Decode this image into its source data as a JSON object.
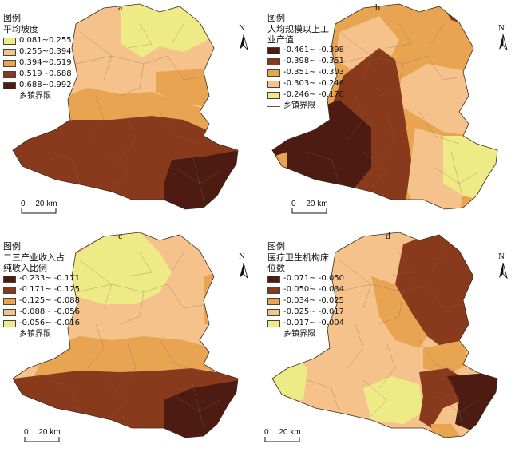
{
  "panels": [
    {
      "letter": "a",
      "legend_title": "平均坡度",
      "classes": [
        {
          "label": "0.081~0.255",
          "color": "#eeeb86"
        },
        {
          "label": "0.255~0.394",
          "color": "#f5c28b"
        },
        {
          "label": "0.394~0.519",
          "color": "#e8a451"
        },
        {
          "label": "0.519~0.688",
          "color": "#8a3a1c"
        },
        {
          "label": "0.688~0.992",
          "color": "#4e1b12"
        }
      ]
    },
    {
      "letter": "b",
      "legend_title": "人均规模以上工业产值",
      "classes": [
        {
          "label": "-0.461~ -0.398",
          "color": "#4e1b12"
        },
        {
          "label": "-0.398~ -0.351",
          "color": "#8a3a1c"
        },
        {
          "label": "-0.351~ -0.303",
          "color": "#e8a451"
        },
        {
          "label": "-0.303~ -0.246",
          "color": "#f5c28b"
        },
        {
          "label": "-0.246~ -0.170",
          "color": "#eeeb86"
        }
      ]
    },
    {
      "letter": "c",
      "legend_title": "二三产业收入占纯收入比例",
      "classes": [
        {
          "label": "-0.233~ -0.171",
          "color": "#4e1b12"
        },
        {
          "label": "-0.171~ -0.125",
          "color": "#8a3a1c"
        },
        {
          "label": "-0.125~ -0.088",
          "color": "#e8a451"
        },
        {
          "label": "-0.088~ -0.056",
          "color": "#f5c28b"
        },
        {
          "label": "-0.056~ -0.016",
          "color": "#eeeb86"
        }
      ]
    },
    {
      "letter": "d",
      "legend_title": "医疗卫生机构床位数",
      "classes": [
        {
          "label": "-0.071~ -0.050",
          "color": "#4e1b12"
        },
        {
          "label": "-0.050~ -0.034",
          "color": "#8a3a1c"
        },
        {
          "label": "-0.034~ -0.025",
          "color": "#e8a451"
        },
        {
          "label": "-0.025~ -0.017",
          "color": "#f5c28b"
        },
        {
          "label": "-0.017~ -0.004",
          "color": "#eeeb86"
        }
      ]
    }
  ],
  "legend_heading": "图例",
  "boundary_label": "乡镇界限",
  "north_label": "N",
  "scale": {
    "zero": "0",
    "distance": "20 km"
  }
}
